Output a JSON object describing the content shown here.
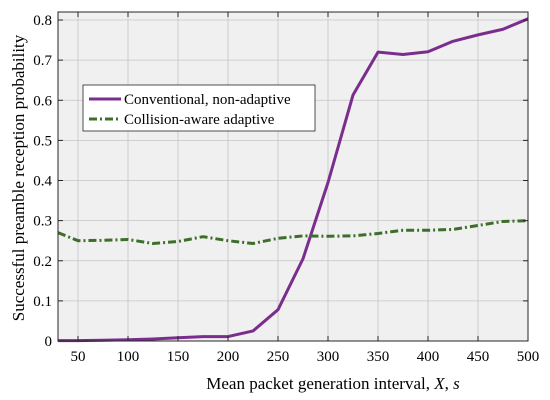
{
  "chart_data": {
    "type": "line",
    "title": "",
    "xlabel_main": "Mean packet generation interval, ",
    "xlabel_var": "X",
    "xlabel_sep": ", ",
    "xlabel_unit": "s",
    "ylabel": "Successful preamble reception probability",
    "xlim": [
      30,
      500
    ],
    "ylim": [
      0,
      0.82
    ],
    "x_ticks": [
      50,
      100,
      150,
      200,
      250,
      300,
      350,
      400,
      450,
      500
    ],
    "y_ticks": [
      0,
      0.1,
      0.2,
      0.3,
      0.4,
      0.5,
      0.6,
      0.7,
      0.8
    ],
    "grid": true,
    "legend_position": "upper-left",
    "series": [
      {
        "name": "Conventional, non-adaptive",
        "color": "#7b2d8e",
        "style": "solid",
        "x": [
          30,
          50,
          75,
          100,
          125,
          150,
          175,
          200,
          225,
          250,
          275,
          300,
          325,
          350,
          375,
          400,
          425,
          450,
          475,
          500
        ],
        "y": [
          0.001,
          0.001,
          0.002,
          0.003,
          0.005,
          0.008,
          0.011,
          0.011,
          0.025,
          0.078,
          0.205,
          0.395,
          0.613,
          0.72,
          0.714,
          0.721,
          0.747,
          0.763,
          0.777,
          0.803
        ]
      },
      {
        "name": "Collision-aware adaptive",
        "color": "#3d6e2a",
        "style": "dashdot",
        "x": [
          30,
          50,
          75,
          100,
          125,
          150,
          175,
          200,
          225,
          250,
          275,
          300,
          325,
          350,
          375,
          400,
          425,
          450,
          475,
          500
        ],
        "y": [
          0.27,
          0.25,
          0.251,
          0.253,
          0.243,
          0.248,
          0.26,
          0.25,
          0.243,
          0.256,
          0.262,
          0.261,
          0.262,
          0.268,
          0.276,
          0.276,
          0.278,
          0.288,
          0.298,
          0.3
        ]
      }
    ]
  }
}
